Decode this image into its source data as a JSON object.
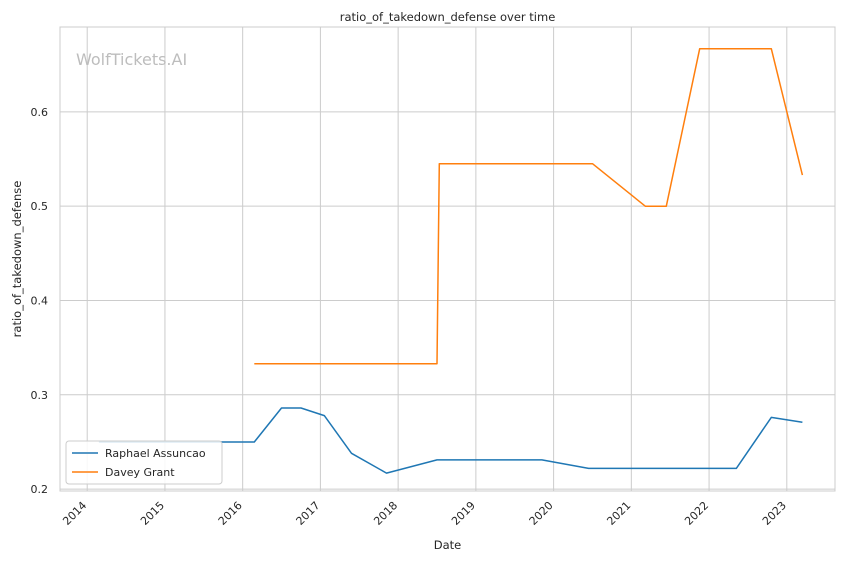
{
  "chart_data": {
    "type": "line",
    "title": "ratio_of_takedown_defense over time",
    "xlabel": "Date",
    "ylabel": "ratio_of_takedown_defense",
    "watermark": "WolfTickets.AI",
    "xlim": [
      2013.65,
      2023.62
    ],
    "ylim": [
      0.198,
      0.69
    ],
    "x_ticks": [
      2014,
      2015,
      2016,
      2017,
      2018,
      2019,
      2020,
      2021,
      2022,
      2023
    ],
    "y_ticks": [
      0.2,
      0.3,
      0.4,
      0.5,
      0.6
    ],
    "grid": true,
    "legend_position": "lower-left",
    "series": [
      {
        "name": "Raphael Assuncao",
        "color": "#1f77b4",
        "x": [
          2014.15,
          2016.15,
          2016.5,
          2016.75,
          2017.05,
          2017.4,
          2017.85,
          2018.5,
          2019.85,
          2020.45,
          2022.35,
          2022.8,
          2023.2
        ],
        "y": [
          0.25,
          0.25,
          0.286,
          0.286,
          0.278,
          0.238,
          0.217,
          0.231,
          0.231,
          0.222,
          0.222,
          0.276,
          0.271
        ]
      },
      {
        "name": "Davey Grant",
        "color": "#ff7f0e",
        "x": [
          2016.15,
          2018.5,
          2018.53,
          2020.5,
          2021.18,
          2021.45,
          2021.88,
          2022.8,
          2023.2
        ],
        "y": [
          0.333,
          0.333,
          0.545,
          0.545,
          0.5,
          0.5,
          0.667,
          0.667,
          0.533
        ]
      }
    ]
  }
}
